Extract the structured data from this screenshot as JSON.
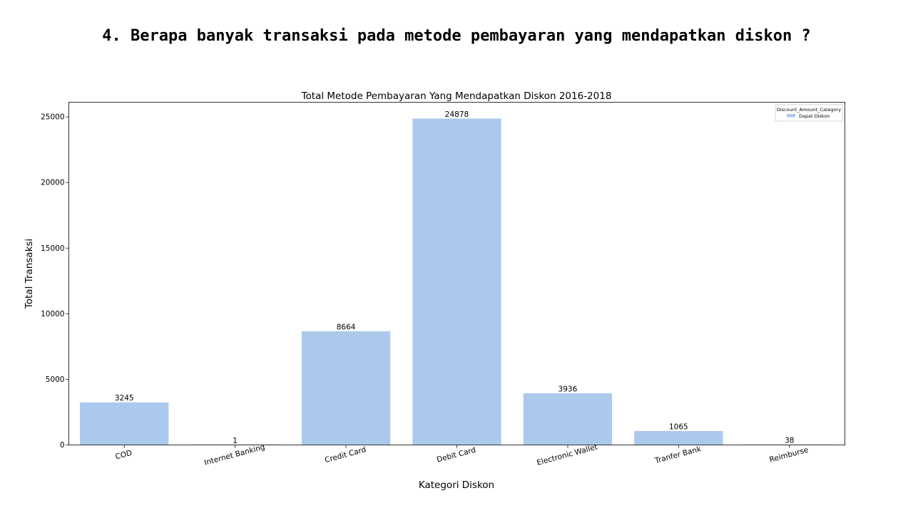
{
  "slide": {
    "heading": "4. Berapa banyak transaksi pada metode pembayaran yang mendapatkan diskon ?"
  },
  "chart_data": {
    "type": "bar",
    "title": "Total Metode Pembayaran Yang Mendapatkan Diskon 2016-2018",
    "xlabel": "Kategori Diskon",
    "ylabel": "Total Transaksi",
    "categories": [
      "COD",
      "Internet Banking",
      "Credit Card",
      "Debit Card",
      "Electronic Wallet",
      "Tranfer Bank",
      "Reimburse"
    ],
    "series": [
      {
        "name": "Dapat Diskon",
        "values": [
          3245,
          1,
          8664,
          24878,
          3936,
          1065,
          38
        ],
        "color": "#abc9ec"
      }
    ],
    "data_labels": [
      "3245",
      "1",
      "8664",
      "24878",
      "3936",
      "1065",
      "38"
    ],
    "yticks": [
      0,
      5000,
      10000,
      15000,
      20000,
      25000
    ],
    "ylim": [
      0,
      26122
    ],
    "grid": false,
    "legend": {
      "title": "Discount_Amount_Category",
      "placement": "top-right"
    }
  }
}
